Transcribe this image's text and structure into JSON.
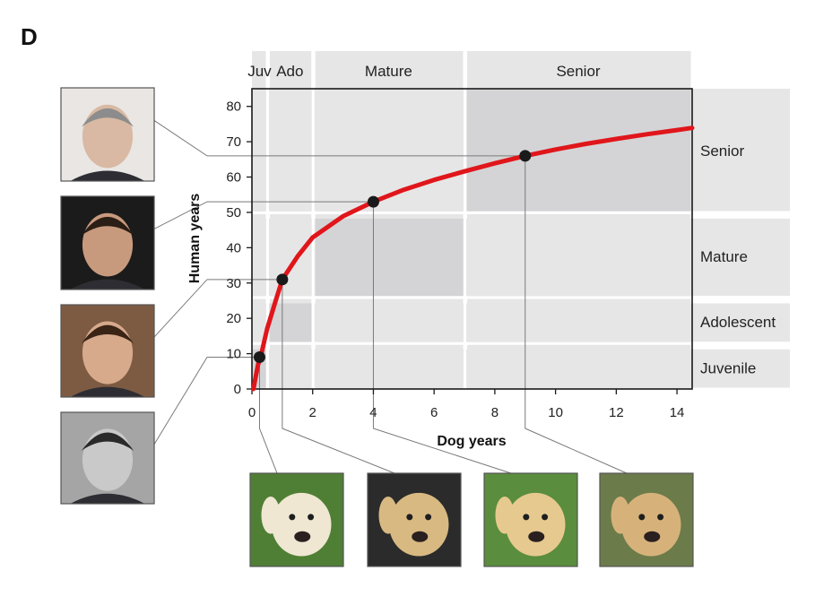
{
  "panel_label": "D",
  "chart_data": {
    "type": "line",
    "xlabel": "Dog years",
    "ylabel": "Human years",
    "xlim": [
      0,
      14.5
    ],
    "ylim": [
      0,
      85
    ],
    "x_ticks": [
      0,
      2,
      4,
      6,
      8,
      10,
      12,
      14
    ],
    "y_ticks": [
      0,
      10,
      20,
      30,
      40,
      50,
      60,
      70,
      80
    ],
    "grid": false,
    "curve_color": "#e0161b",
    "series": [
      {
        "x": [
          0.05,
          0.1,
          0.2,
          0.3,
          0.5,
          0.75,
          1,
          1.5,
          2,
          3,
          4,
          5,
          6,
          7,
          8,
          9,
          10,
          11,
          12,
          13,
          14,
          14.5
        ],
        "y": [
          0,
          2.4,
          6.9,
          9.6,
          17.0,
          24.1,
          31,
          37.5,
          42.9,
          48.9,
          53,
          56.4,
          59.2,
          61.6,
          63.9,
          66,
          67.8,
          69.4,
          70.8,
          72.1,
          73.3,
          73.9
        ]
      }
    ],
    "highlighted_points": [
      {
        "x": 0.25,
        "y": 9
      },
      {
        "x": 1,
        "y": 31
      },
      {
        "x": 4,
        "y": 53
      },
      {
        "x": 9,
        "y": 66
      }
    ],
    "dog_stages": [
      {
        "label": "Juv",
        "x_start": 0,
        "x_end": 0.5
      },
      {
        "label": "Ado",
        "x_start": 0.5,
        "x_end": 2
      },
      {
        "label": "Mature",
        "x_start": 2,
        "x_end": 7
      },
      {
        "label": "Senior",
        "x_start": 7,
        "x_end": 14.5
      }
    ],
    "human_stages": [
      {
        "label": "Juvenile",
        "y_start": 0,
        "y_end": 12
      },
      {
        "label": "Adolescent",
        "y_start": 13,
        "y_end": 25
      },
      {
        "label": "Mature",
        "y_start": 26,
        "y_end": 49
      },
      {
        "label": "Senior",
        "y_start": 50,
        "y_end": 85
      }
    ]
  },
  "photos": {
    "human": [
      {
        "icon": "older-man-photo"
      },
      {
        "icon": "adult-man-photo"
      },
      {
        "icon": "teen-boy-photo"
      },
      {
        "icon": "child-photo"
      }
    ],
    "dog": [
      {
        "icon": "puppy-photo"
      },
      {
        "icon": "young-dog-photo"
      },
      {
        "icon": "adult-dog-photo"
      },
      {
        "icon": "senior-dog-photo"
      }
    ]
  },
  "colors": {
    "band_light": "#e6e6e6",
    "band_dark": "#d4d4d6",
    "curve": "#e0161b",
    "connector": "#7a7a7a",
    "point": "#1a1a1a"
  }
}
